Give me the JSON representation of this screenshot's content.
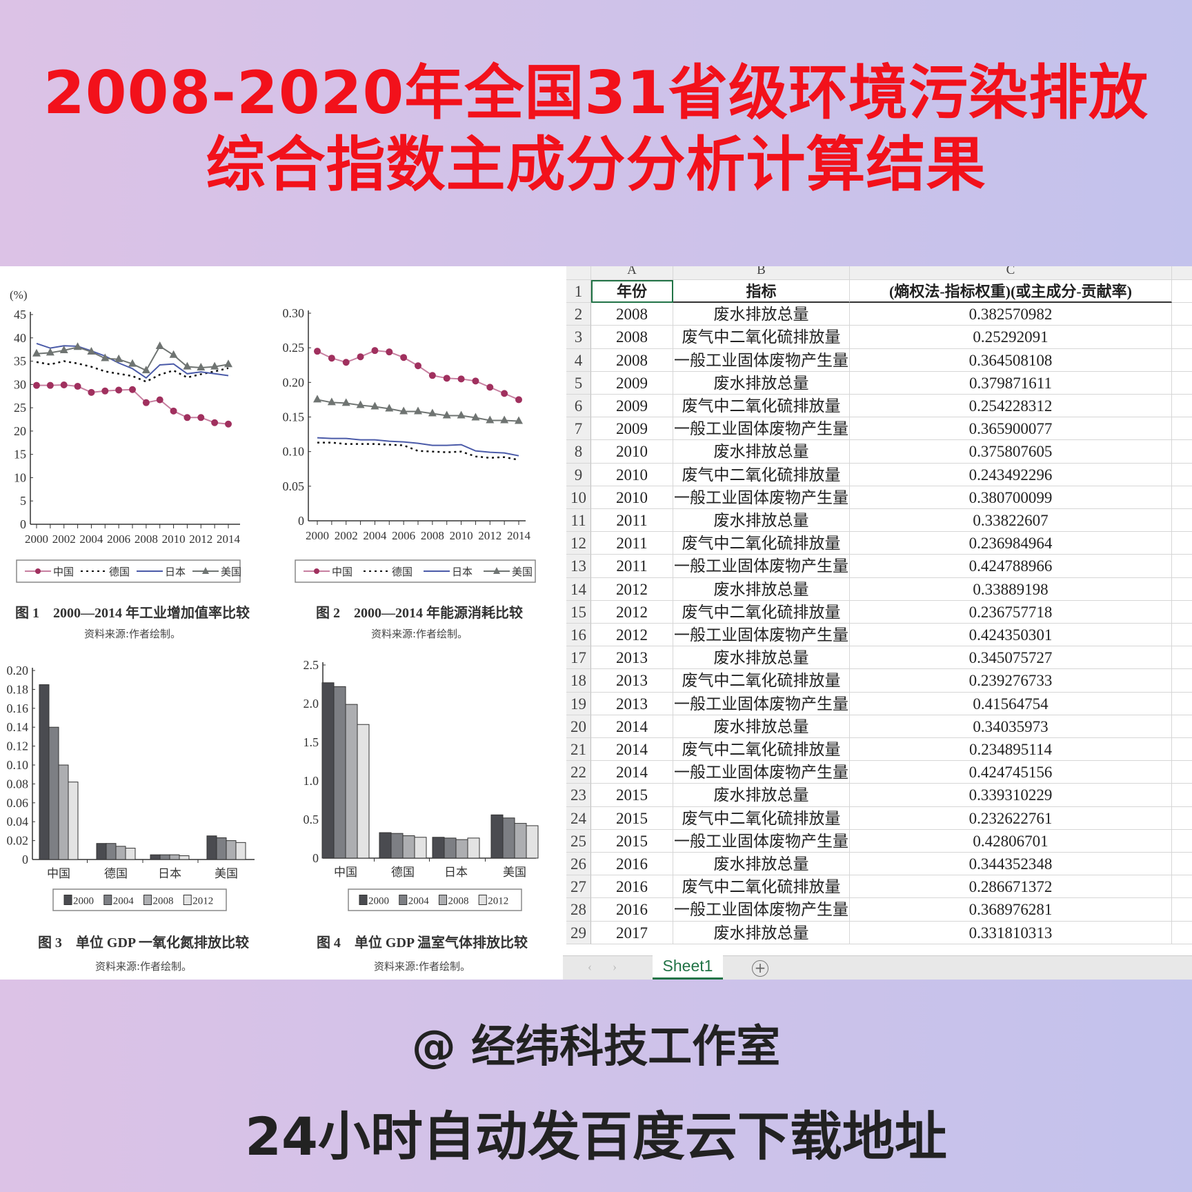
{
  "header": {
    "line1": "2008-2020年全国31省级环境污染排放",
    "line2": "综合指数主成分分析计算结果"
  },
  "footer": {
    "studio": "@ 经纬科技工作室",
    "note": "24小时自动发百度云下载地址"
  },
  "colors": {
    "title": "#f2111b",
    "china": "#a0305e",
    "germany": "#111111",
    "japan": "#4a5aa8",
    "usa": "#6f7472",
    "bar2000": "#4a4b50",
    "bar2004": "#7d7f84",
    "bar2008": "#adaeb1",
    "bar2012": "#e3e3e3"
  },
  "chart_data": [
    {
      "type": "line",
      "ylabel": "(%)",
      "caption": "图 1　2000—2014 年工业增加值率比较",
      "source": "资料来源:作者绘制。",
      "ylim": [
        0,
        45
      ],
      "yticks": [
        "0",
        "5",
        "10",
        "15",
        "20",
        "25",
        "30",
        "35",
        "40",
        "45"
      ],
      "xticks": [
        "2000",
        "2002",
        "2004",
        "2006",
        "2008",
        "2010",
        "2012",
        "2014"
      ],
      "x": [
        2000,
        2001,
        2002,
        2003,
        2004,
        2005,
        2006,
        2007,
        2008,
        2009,
        2010,
        2011,
        2012,
        2013,
        2014
      ],
      "legend": "bottom",
      "series": [
        {
          "name": "中国",
          "values": [
            29.8,
            29.8,
            29.9,
            29.6,
            28.3,
            28.6,
            28.8,
            28.9,
            26.1,
            26.7,
            24.3,
            22.9,
            22.9,
            21.8,
            21.5
          ]
        },
        {
          "name": "德国",
          "values": [
            34.8,
            34.3,
            35.0,
            34.5,
            33.8,
            32.8,
            32.3,
            31.8,
            30.6,
            32.1,
            33.0,
            31.5,
            32.2,
            32.8,
            33.5
          ]
        },
        {
          "name": "日本",
          "values": [
            38.8,
            37.8,
            38.3,
            38.2,
            37.2,
            36.1,
            34.6,
            33.4,
            31.4,
            34.2,
            34.4,
            32.3,
            32.7,
            32.3,
            31.9
          ]
        },
        {
          "name": "美国",
          "values": [
            36.6,
            36.8,
            37.3,
            38.0,
            37.0,
            35.6,
            35.4,
            34.4,
            33.0,
            38.2,
            36.3,
            33.8,
            33.6,
            33.8,
            34.3
          ]
        }
      ]
    },
    {
      "type": "line",
      "caption": "图 2　2000—2014 年能源消耗比较",
      "source": "资料来源:作者绘制。",
      "ylim": [
        0,
        0.3
      ],
      "yticks": [
        "0",
        "0.05",
        "0.10",
        "0.15",
        "0.20",
        "0.25",
        "0.30"
      ],
      "xticks": [
        "2000",
        "2002",
        "2004",
        "2006",
        "2008",
        "2010",
        "2012",
        "2014"
      ],
      "x": [
        2000,
        2001,
        2002,
        2003,
        2004,
        2005,
        2006,
        2007,
        2008,
        2009,
        2010,
        2011,
        2012,
        2013,
        2014
      ],
      "legend": "bottom",
      "series": [
        {
          "name": "中国",
          "values": [
            0.245,
            0.235,
            0.229,
            0.237,
            0.246,
            0.244,
            0.236,
            0.224,
            0.21,
            0.206,
            0.205,
            0.202,
            0.193,
            0.184,
            0.175
          ]
        },
        {
          "name": "德国",
          "values": [
            0.113,
            0.113,
            0.111,
            0.111,
            0.111,
            0.11,
            0.109,
            0.101,
            0.1,
            0.099,
            0.1,
            0.093,
            0.091,
            0.092,
            0.088
          ]
        },
        {
          "name": "日本",
          "values": [
            0.12,
            0.119,
            0.119,
            0.117,
            0.117,
            0.115,
            0.114,
            0.112,
            0.109,
            0.109,
            0.11,
            0.101,
            0.099,
            0.098,
            0.094
          ]
        },
        {
          "name": "美国",
          "values": [
            0.175,
            0.171,
            0.17,
            0.167,
            0.165,
            0.162,
            0.158,
            0.158,
            0.155,
            0.152,
            0.152,
            0.149,
            0.145,
            0.145,
            0.144
          ]
        }
      ]
    },
    {
      "type": "bar",
      "caption": "图 3　单位 GDP 一氧化氮排放比较",
      "source": "资料来源:作者绘制。",
      "ylim": [
        0,
        0.2
      ],
      "yticks": [
        "0",
        "0.02",
        "0.04",
        "0.06",
        "0.08",
        "0.10",
        "0.12",
        "0.14",
        "0.16",
        "0.18",
        "0.20"
      ],
      "categories": [
        "中国",
        "德国",
        "日本",
        "美国"
      ],
      "legend": "bottom",
      "series": [
        {
          "name": "2000",
          "values": [
            0.185,
            0.017,
            0.005,
            0.025
          ]
        },
        {
          "name": "2004",
          "values": [
            0.14,
            0.017,
            0.005,
            0.023
          ]
        },
        {
          "name": "2008",
          "values": [
            0.1,
            0.014,
            0.005,
            0.02
          ]
        },
        {
          "name": "2012",
          "values": [
            0.082,
            0.012,
            0.004,
            0.018
          ]
        }
      ]
    },
    {
      "type": "bar",
      "caption": "图 4　单位 GDP 温室气体排放比较",
      "source": "资料来源:作者绘制。",
      "ylim": [
        0,
        2.5
      ],
      "yticks": [
        "0",
        "0.5",
        "1.0",
        "1.5",
        "2.0",
        "2.5"
      ],
      "categories": [
        "中国",
        "德国",
        "日本",
        "美国"
      ],
      "legend": "bottom",
      "series": [
        {
          "name": "2000",
          "values": [
            2.27,
            0.33,
            0.27,
            0.56
          ]
        },
        {
          "name": "2004",
          "values": [
            2.22,
            0.32,
            0.26,
            0.52
          ]
        },
        {
          "name": "2008",
          "values": [
            1.99,
            0.29,
            0.24,
            0.45
          ]
        },
        {
          "name": "2012",
          "values": [
            1.73,
            0.27,
            0.26,
            0.42
          ]
        }
      ]
    }
  ],
  "sheet": {
    "columns": [
      "A",
      "B",
      "C"
    ],
    "header": [
      "年份",
      "指标",
      "(熵权法-指标权重)(或主成分-贡献率)"
    ],
    "rows": [
      [
        "2008",
        "废水排放总量",
        "0.382570982"
      ],
      [
        "2008",
        "废气中二氧化硫排放量",
        "0.25292091"
      ],
      [
        "2008",
        "一般工业固体废物产生量",
        "0.364508108"
      ],
      [
        "2009",
        "废水排放总量",
        "0.379871611"
      ],
      [
        "2009",
        "废气中二氧化硫排放量",
        "0.254228312"
      ],
      [
        "2009",
        "一般工业固体废物产生量",
        "0.365900077"
      ],
      [
        "2010",
        "废水排放总量",
        "0.375807605"
      ],
      [
        "2010",
        "废气中二氧化硫排放量",
        "0.243492296"
      ],
      [
        "2010",
        "一般工业固体废物产生量",
        "0.380700099"
      ],
      [
        "2011",
        "废水排放总量",
        "0.33822607"
      ],
      [
        "2011",
        "废气中二氧化硫排放量",
        "0.236984964"
      ],
      [
        "2011",
        "一般工业固体废物产生量",
        "0.424788966"
      ],
      [
        "2012",
        "废水排放总量",
        "0.33889198"
      ],
      [
        "2012",
        "废气中二氧化硫排放量",
        "0.236757718"
      ],
      [
        "2012",
        "一般工业固体废物产生量",
        "0.424350301"
      ],
      [
        "2013",
        "废水排放总量",
        "0.345075727"
      ],
      [
        "2013",
        "废气中二氧化硫排放量",
        "0.239276733"
      ],
      [
        "2013",
        "一般工业固体废物产生量",
        "0.41564754"
      ],
      [
        "2014",
        "废水排放总量",
        "0.34035973"
      ],
      [
        "2014",
        "废气中二氧化硫排放量",
        "0.234895114"
      ],
      [
        "2014",
        "一般工业固体废物产生量",
        "0.424745156"
      ],
      [
        "2015",
        "废水排放总量",
        "0.339310229"
      ],
      [
        "2015",
        "废气中二氧化硫排放量",
        "0.232622761"
      ],
      [
        "2015",
        "一般工业固体废物产生量",
        "0.42806701"
      ],
      [
        "2016",
        "废水排放总量",
        "0.344352348"
      ],
      [
        "2016",
        "废气中二氧化硫排放量",
        "0.286671372"
      ],
      [
        "2016",
        "一般工业固体废物产生量",
        "0.368976281"
      ],
      [
        "2017",
        "废水排放总量",
        "0.331810313"
      ]
    ],
    "tab": "Sheet1",
    "add_sheet_icon": "plus-circle-icon"
  }
}
